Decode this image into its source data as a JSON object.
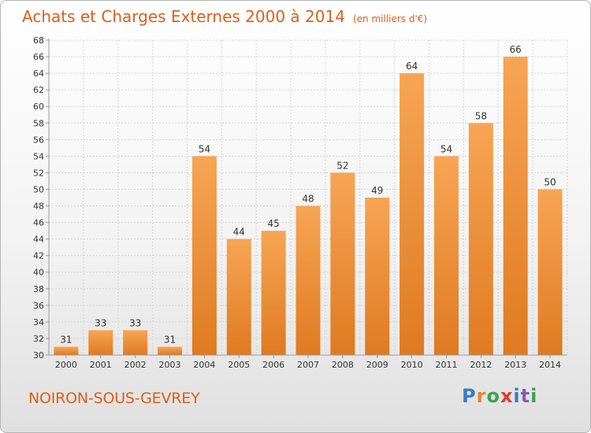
{
  "title": "Achats et Charges Externes 2000 à 2014",
  "unit": "(en milliers d'€)",
  "place": "NOIRON-SOUS-GEVREY",
  "logo": {
    "p": "P",
    "r": "r",
    "o": "o",
    "x": "x",
    "i": "i",
    "t": "t",
    "i2": "i"
  },
  "colors": {
    "bar_top": "#f7a554",
    "bar_bottom": "#df7a21",
    "title": "#de5f18",
    "grid": "#d4d4d4"
  },
  "chart_data": {
    "type": "bar",
    "categories": [
      "2000",
      "2001",
      "2002",
      "2003",
      "2004",
      "2005",
      "2006",
      "2007",
      "2008",
      "2009",
      "2010",
      "2011",
      "2012",
      "2013",
      "2014"
    ],
    "values": [
      31,
      33,
      33,
      31,
      54,
      44,
      45,
      48,
      52,
      49,
      64,
      54,
      58,
      66,
      50
    ],
    "ylim": [
      30,
      68
    ],
    "yticks": [
      30,
      32,
      34,
      36,
      38,
      40,
      42,
      44,
      46,
      48,
      50,
      52,
      54,
      56,
      58,
      60,
      62,
      64,
      66,
      68
    ],
    "grid": true
  }
}
